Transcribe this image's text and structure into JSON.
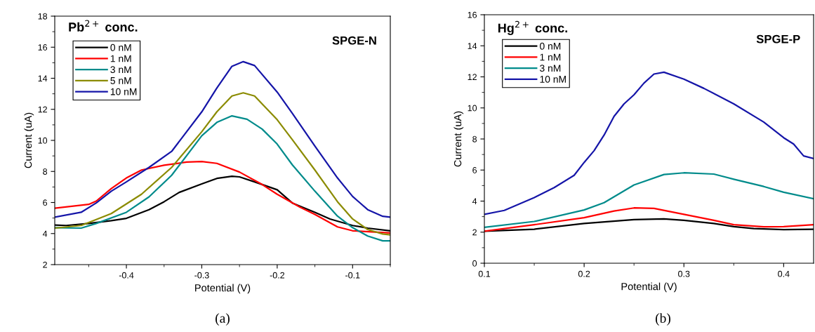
{
  "chart_data": [
    {
      "type": "line",
      "legend_title": "Pb$^{2+}$ conc.",
      "xlabel": "Potential (V)",
      "ylabel": "Current (uA)",
      "annotations": [
        "SPGE-N",
        "(a)"
      ],
      "xlim": [
        -0.495,
        -0.05
      ],
      "xticks": [
        -0.4,
        -0.3,
        -0.2,
        -0.1
      ],
      "ylim": [
        2,
        18
      ],
      "yticks": [
        2,
        4,
        6,
        8,
        10,
        12,
        14,
        16,
        18
      ],
      "legend": "top left",
      "grid": false,
      "series": [
        {
          "name": "0 nM",
          "color": "#000000",
          "x": [
            -0.495,
            -0.48,
            -0.45,
            -0.42,
            -0.4,
            -0.37,
            -0.35,
            -0.33,
            -0.3,
            -0.28,
            -0.26,
            -0.25,
            -0.23,
            -0.2,
            -0.18,
            -0.15,
            -0.13,
            -0.1,
            -0.08,
            -0.05
          ],
          "values": [
            4.55,
            4.52,
            4.65,
            4.83,
            4.98,
            5.54,
            6.05,
            6.65,
            7.2,
            7.55,
            7.69,
            7.65,
            7.33,
            6.82,
            5.97,
            5.37,
            4.94,
            4.52,
            4.35,
            4.18
          ]
        },
        {
          "name": "1 nM",
          "color": "#ff0000",
          "x": [
            -0.495,
            -0.45,
            -0.44,
            -0.42,
            -0.4,
            -0.38,
            -0.35,
            -0.32,
            -0.3,
            -0.28,
            -0.25,
            -0.22,
            -0.2,
            -0.17,
            -0.15,
            -0.12,
            -0.1,
            -0.05
          ],
          "values": [
            5.63,
            5.88,
            6.09,
            6.9,
            7.58,
            8.09,
            8.4,
            8.6,
            8.64,
            8.52,
            7.96,
            7.16,
            6.53,
            5.71,
            5.23,
            4.43,
            4.18,
            4.04
          ]
        },
        {
          "name": "3 nM",
          "color": "#008b8b",
          "x": [
            -0.495,
            -0.46,
            -0.44,
            -0.4,
            -0.37,
            -0.34,
            -0.3,
            -0.28,
            -0.26,
            -0.24,
            -0.22,
            -0.2,
            -0.18,
            -0.15,
            -0.12,
            -0.1,
            -0.08,
            -0.06,
            -0.05
          ],
          "values": [
            4.38,
            4.35,
            4.65,
            5.37,
            6.36,
            7.75,
            10.3,
            11.16,
            11.58,
            11.36,
            10.73,
            9.76,
            8.43,
            6.73,
            5.12,
            4.38,
            3.84,
            3.53,
            3.53
          ]
        },
        {
          "name": "5 nM",
          "color": "#8b8b00",
          "x": [
            -0.495,
            -0.46,
            -0.42,
            -0.38,
            -0.34,
            -0.3,
            -0.28,
            -0.26,
            -0.245,
            -0.23,
            -0.2,
            -0.18,
            -0.15,
            -0.12,
            -0.1,
            -0.08,
            -0.06,
            -0.05
          ],
          "values": [
            4.35,
            4.52,
            5.29,
            6.53,
            8.26,
            10.56,
            11.84,
            12.86,
            13.06,
            12.86,
            11.33,
            10.05,
            8.09,
            6.05,
            4.94,
            4.26,
            3.97,
            3.92
          ]
        },
        {
          "name": "10 nM",
          "color": "#1515a8",
          "x": [
            -0.495,
            -0.46,
            -0.44,
            -0.42,
            -0.4,
            -0.37,
            -0.34,
            -0.3,
            -0.28,
            -0.26,
            -0.245,
            -0.23,
            -0.2,
            -0.18,
            -0.15,
            -0.12,
            -0.1,
            -0.08,
            -0.06,
            -0.05
          ],
          "values": [
            5.06,
            5.37,
            5.97,
            6.73,
            7.33,
            8.26,
            9.29,
            11.84,
            13.37,
            14.77,
            15.07,
            14.82,
            13.11,
            11.75,
            9.63,
            7.58,
            6.39,
            5.54,
            5.11,
            5.06
          ]
        }
      ]
    },
    {
      "type": "line",
      "legend_title": "Hg$^{2+}$ conc.",
      "xlabel": "Potential (V)",
      "ylabel": "Current (uA)",
      "annotations": [
        "SPGE-P",
        "(b)"
      ],
      "xlim": [
        0.1,
        0.43
      ],
      "xticks": [
        0.1,
        0.2,
        0.3,
        0.4
      ],
      "ylim": [
        0,
        16
      ],
      "yticks": [
        0,
        2,
        4,
        6,
        8,
        10,
        12,
        14,
        16
      ],
      "legend": "top left",
      "grid": false,
      "series": [
        {
          "name": "0 nM",
          "color": "#000000",
          "x": [
            0.1,
            0.15,
            0.2,
            0.25,
            0.28,
            0.3,
            0.33,
            0.35,
            0.37,
            0.4,
            0.43
          ],
          "values": [
            2.06,
            2.19,
            2.56,
            2.81,
            2.85,
            2.76,
            2.56,
            2.36,
            2.23,
            2.16,
            2.19
          ]
        },
        {
          "name": "1 nM",
          "color": "#ff0000",
          "x": [
            0.1,
            0.15,
            0.2,
            0.23,
            0.25,
            0.27,
            0.3,
            0.33,
            0.35,
            0.38,
            0.4,
            0.43
          ],
          "values": [
            2.06,
            2.48,
            2.93,
            3.36,
            3.56,
            3.53,
            3.15,
            2.76,
            2.48,
            2.34,
            2.36,
            2.48
          ]
        },
        {
          "name": "3 nM",
          "color": "#008b8b",
          "x": [
            0.1,
            0.15,
            0.2,
            0.22,
            0.25,
            0.28,
            0.3,
            0.33,
            0.35,
            0.38,
            0.4,
            0.43
          ],
          "values": [
            2.31,
            2.69,
            3.43,
            3.9,
            5.04,
            5.71,
            5.82,
            5.74,
            5.41,
            4.94,
            4.57,
            4.15
          ]
        },
        {
          "name": "10 nM",
          "color": "#1515a8",
          "x": [
            0.1,
            0.12,
            0.15,
            0.17,
            0.19,
            0.2,
            0.21,
            0.22,
            0.23,
            0.24,
            0.25,
            0.26,
            0.27,
            0.28,
            0.3,
            0.32,
            0.35,
            0.38,
            0.4,
            0.41,
            0.42,
            0.43
          ],
          "values": [
            3.15,
            3.4,
            4.23,
            4.87,
            5.66,
            6.49,
            7.25,
            8.25,
            9.46,
            10.26,
            10.85,
            11.6,
            12.18,
            12.3,
            11.85,
            11.26,
            10.26,
            9.09,
            8.08,
            7.67,
            6.91,
            6.74
          ]
        }
      ]
    }
  ]
}
